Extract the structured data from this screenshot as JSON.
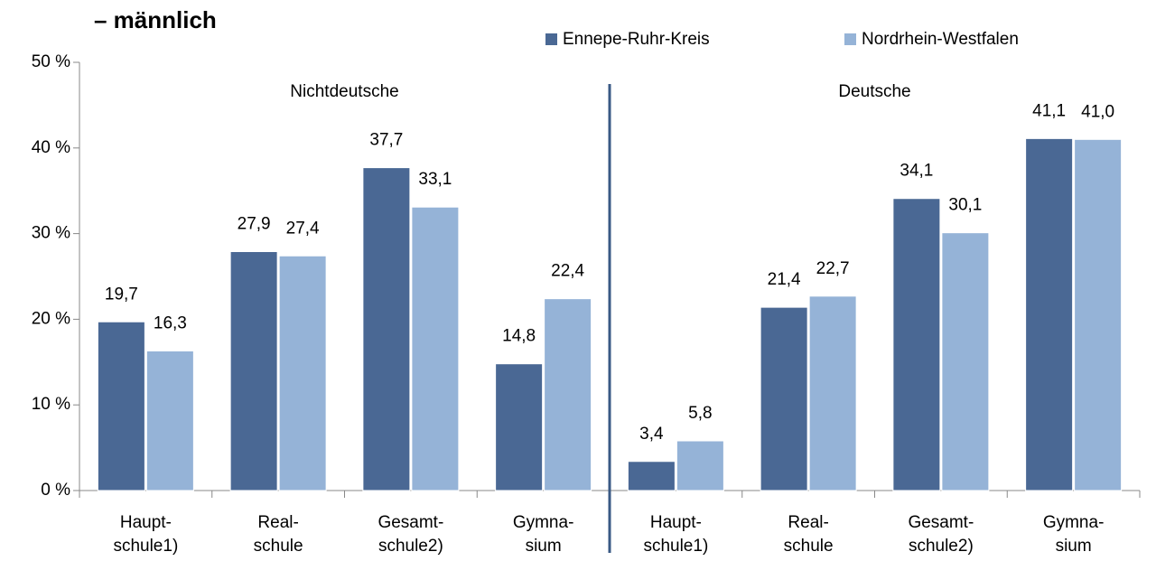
{
  "chart_data": {
    "type": "bar",
    "title": "– männlich",
    "categories": [
      "Haupt-\nschule1)",
      "Real-\nschule",
      "Gesamt-\nschule2)",
      "Gymna-\nsium",
      "Haupt-\nschule1)",
      "Real-\nschule",
      "Gesamt-\nschule2)",
      "Gymna-\nsium"
    ],
    "groups": [
      "Nichtdeutsche",
      "Deutsche"
    ],
    "series": [
      {
        "name": "Ennepe-Ruhr-Kreis",
        "color": "#4a6894",
        "values": [
          19.7,
          27.9,
          37.7,
          14.8,
          3.4,
          21.4,
          34.1,
          41.1
        ],
        "value_labels": [
          "19,7",
          "27,9",
          "37,7",
          "14,8",
          "3,4",
          "21,4",
          "34,1",
          "41,1"
        ]
      },
      {
        "name": "Nordrhein-Westfalen",
        "color": "#95b3d7",
        "values": [
          16.3,
          27.4,
          33.1,
          22.4,
          5.8,
          22.7,
          30.1,
          41.0
        ],
        "value_labels": [
          "16,3",
          "27,4",
          "33,1",
          "22,4",
          "5,8",
          "22,7",
          "30,1",
          "41,0"
        ]
      }
    ],
    "ylim": [
      0,
      50
    ],
    "yticks": [
      {
        "value": 0,
        "label": "0 %"
      },
      {
        "value": 10,
        "label": "10 %"
      },
      {
        "value": 20,
        "label": "20 %"
      },
      {
        "value": 30,
        "label": "30 %"
      },
      {
        "value": 40,
        "label": "40 %"
      },
      {
        "value": 50,
        "label": "50 %"
      }
    ],
    "legend": "top-right"
  }
}
